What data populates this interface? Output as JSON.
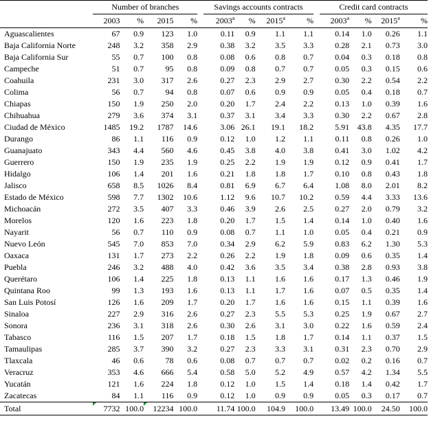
{
  "header": {
    "groups": [
      "Number of branches",
      "Savings accounts contracts",
      "Credit card contracts"
    ],
    "subheaders": [
      "2003",
      "%",
      "2015",
      "%",
      "2003",
      "%",
      "2015",
      "%",
      "2003",
      "%",
      "2015",
      "%"
    ],
    "sup_flags": [
      false,
      false,
      false,
      false,
      true,
      false,
      true,
      false,
      true,
      false,
      true,
      false
    ],
    "superscript": "a"
  },
  "rows": [
    [
      "Aguascalientes",
      "67",
      "0.9",
      "123",
      "1.0",
      "0.11",
      "0.9",
      "1.1",
      "1.1",
      "0.14",
      "1.0",
      "0.26",
      "1.1"
    ],
    [
      "Baja California Norte",
      "248",
      "3.2",
      "358",
      "2.9",
      "0.38",
      "3.2",
      "3.5",
      "3.3",
      "0.28",
      "2.1",
      "0.73",
      "3.0"
    ],
    [
      "Baja California Sur",
      "55",
      "0.7",
      "100",
      "0.8",
      "0.08",
      "0.6",
      "0.8",
      "0.7",
      "0.04",
      "0.3",
      "0.18",
      "0.8"
    ],
    [
      "Campeche",
      "51",
      "0.7",
      "95",
      "0.8",
      "0.09",
      "0.8",
      "0.7",
      "0.7",
      "0.05",
      "0.3",
      "0.15",
      "0.6"
    ],
    [
      "Coahuila",
      "231",
      "3.0",
      "317",
      "2.6",
      "0.27",
      "2.3",
      "2.9",
      "2.7",
      "0.30",
      "2.2",
      "0.54",
      "2.2"
    ],
    [
      "Colima",
      "56",
      "0.7",
      "94",
      "0.8",
      "0.07",
      "0.6",
      "0.9",
      "0.9",
      "0.05",
      "0.4",
      "0.18",
      "0.7"
    ],
    [
      "Chiapas",
      "150",
      "1.9",
      "250",
      "2.0",
      "0.20",
      "1.7",
      "2.4",
      "2.2",
      "0.13",
      "1.0",
      "0.39",
      "1.6"
    ],
    [
      "Chihuahua",
      "279",
      "3.6",
      "374",
      "3.1",
      "0.37",
      "3.1",
      "3.4",
      "3.3",
      "0.30",
      "2.2",
      "0.67",
      "2.8"
    ],
    [
      "Ciudad de México",
      "1485",
      "19.2",
      "1787",
      "14.6",
      "3.06",
      "26.1",
      "19.1",
      "18.2",
      "5.91",
      "43.8",
      "4.35",
      "17.7"
    ],
    [
      "Durango",
      "86",
      "1.1",
      "116",
      "0.9",
      "0.12",
      "1.0",
      "1.2",
      "1.1",
      "0.11",
      "0.8",
      "0.26",
      "1.0"
    ],
    [
      "Guanajuato",
      "343",
      "4.4",
      "560",
      "4.6",
      "0.45",
      "3.8",
      "4.0",
      "3.8",
      "0.41",
      "3.0",
      "1.02",
      "4.2"
    ],
    [
      "Guerrero",
      "150",
      "1.9",
      "235",
      "1.9",
      "0.25",
      "2.2",
      "1.9",
      "1.9",
      "0.12",
      "0.9",
      "0.41",
      "1.7"
    ],
    [
      "Hidalgo",
      "106",
      "1.4",
      "201",
      "1.6",
      "0.21",
      "1.8",
      "1.8",
      "1.7",
      "0.10",
      "0.8",
      "0.43",
      "1.8"
    ],
    [
      "Jalisco",
      "658",
      "8.5",
      "1026",
      "8.4",
      "0.81",
      "6.9",
      "6.7",
      "6.4",
      "1.08",
      "8.0",
      "2.01",
      "8.2"
    ],
    [
      "Estado de México",
      "598",
      "7.7",
      "1302",
      "10.6",
      "1.12",
      "9.6",
      "10.7",
      "10.2",
      "0.59",
      "4.4",
      "3.33",
      "13.6"
    ],
    [
      "Michoacán",
      "272",
      "3.5",
      "407",
      "3.3",
      "0.46",
      "3.9",
      "2.6",
      "2.5",
      "0.27",
      "2.0",
      "0.79",
      "3.2"
    ],
    [
      "Morelos",
      "120",
      "1.6",
      "223",
      "1.8",
      "0.20",
      "1.7",
      "1.5",
      "1.4",
      "0.14",
      "1.0",
      "0.40",
      "1.6"
    ],
    [
      "Nayarit",
      "56",
      "0.7",
      "110",
      "0.9",
      "0.08",
      "0.7",
      "1.1",
      "1.0",
      "0.05",
      "0.4",
      "0.21",
      "0.9"
    ],
    [
      "Nuevo León",
      "545",
      "7.0",
      "853",
      "7.0",
      "0.34",
      "2.9",
      "6.2",
      "5.9",
      "0.83",
      "6.2",
      "1.30",
      "5.3"
    ],
    [
      "Oaxaca",
      "131",
      "1.7",
      "273",
      "2.2",
      "0.26",
      "2.2",
      "1.9",
      "1.8",
      "0.09",
      "0.6",
      "0.35",
      "1.4"
    ],
    [
      "Puebla",
      "246",
      "3.2",
      "488",
      "4.0",
      "0.42",
      "3.6",
      "3.5",
      "3.4",
      "0.38",
      "2.8",
      "0.93",
      "3.8"
    ],
    [
      "Querétaro",
      "106",
      "1.4",
      "225",
      "1.8",
      "0.13",
      "1.1",
      "1.6",
      "1.6",
      "0.17",
      "1.3",
      "0.46",
      "1.9"
    ],
    [
      "Quintana Roo",
      "99",
      "1.3",
      "193",
      "1.6",
      "0.13",
      "1.1",
      "1.7",
      "1.6",
      "0.07",
      "0.5",
      "0.35",
      "1.4"
    ],
    [
      "San Luis Potosí",
      "126",
      "1.6",
      "209",
      "1.7",
      "0.20",
      "1.7",
      "1.6",
      "1.6",
      "0.15",
      "1.1",
      "0.39",
      "1.6"
    ],
    [
      "Sinaloa",
      "227",
      "2.9",
      "316",
      "2.6",
      "0.27",
      "2.3",
      "5.5",
      "5.3",
      "0.25",
      "1.9",
      "0.67",
      "2.7"
    ],
    [
      "Sonora",
      "236",
      "3.1",
      "318",
      "2.6",
      "0.30",
      "2.6",
      "3.1",
      "3.0",
      "0.22",
      "1.6",
      "0.59",
      "2.4"
    ],
    [
      "Tabasco",
      "116",
      "1.5",
      "207",
      "1.7",
      "0.18",
      "1.5",
      "1.8",
      "1.7",
      "0.14",
      "1.1",
      "0.37",
      "1.5"
    ],
    [
      "Tamaulipas",
      "285",
      "3.7",
      "390",
      "3.2",
      "0.27",
      "2.3",
      "3.3",
      "3.1",
      "0.31",
      "2.3",
      "0.70",
      "2.9"
    ],
    [
      "Tlaxcala",
      "46",
      "0.6",
      "78",
      "0.6",
      "0.08",
      "0.7",
      "0.7",
      "0.7",
      "0.02",
      "0.2",
      "0.16",
      "0.7"
    ],
    [
      "Veracruz",
      "353",
      "4.6",
      "666",
      "5.4",
      "0.58",
      "5.0",
      "5.2",
      "4.9",
      "0.57",
      "4.2",
      "1.34",
      "5.5"
    ],
    [
      "Yucatán",
      "121",
      "1.6",
      "224",
      "1.8",
      "0.12",
      "1.0",
      "1.5",
      "1.4",
      "0.18",
      "1.4",
      "0.42",
      "1.7"
    ],
    [
      "Zacatecas",
      "84",
      "1.1",
      "116",
      "0.9",
      "0.12",
      "1.0",
      "0.9",
      "0.9",
      "0.05",
      "0.3",
      "0.17",
      "0.7"
    ]
  ],
  "total": [
    "Total",
    "7732",
    "100.0",
    "12234",
    "100.0",
    "11.74",
    "100.0",
    "104.9",
    "100.0",
    "13.49",
    "100.0",
    "24.50",
    "100.0"
  ],
  "flag_color": "#1a8a3a"
}
